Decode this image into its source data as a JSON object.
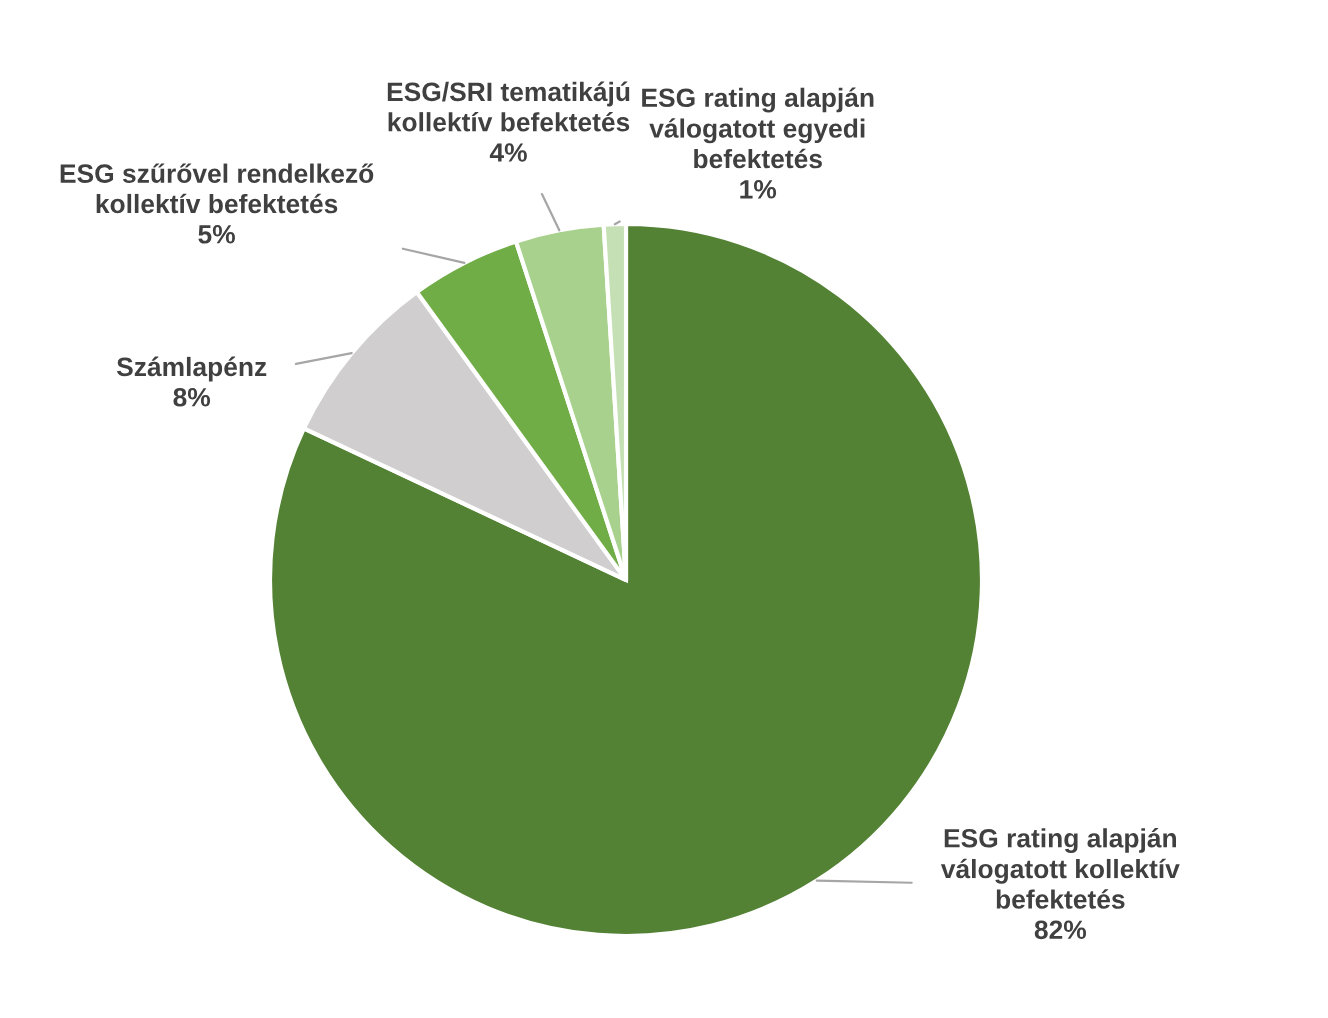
{
  "chart_data": {
    "type": "pie",
    "categories": [
      "ESG rating alapján válogatott kollektív befektetés",
      "Számlapénz",
      "ESG szűrővel rendelkező kollektív befektetés",
      "ESG/SRI tematikájú kollektív befektetés",
      "ESG rating alapján válogatott egyedi befektetés"
    ],
    "values": [
      82,
      8,
      5,
      4,
      1
    ],
    "value_labels": [
      "82%",
      "8%",
      "5%",
      "4%",
      "1%"
    ],
    "colors": [
      "#548235",
      "#d0cece",
      "#70ad47",
      "#a9d18e",
      "#c5e0b4"
    ]
  }
}
